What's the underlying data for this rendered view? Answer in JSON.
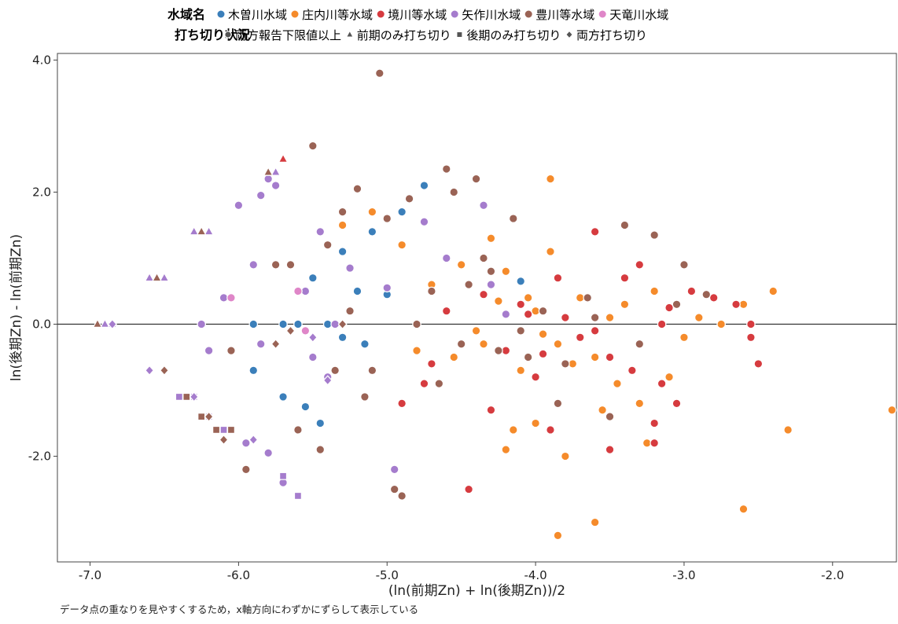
{
  "chart_data": {
    "type": "scatter",
    "xlabel": "(ln(前期Zn) + ln(後期Zn))/2",
    "ylabel": "ln(後期Zn) - ln(前期Zn)",
    "xlim": [
      -7.22,
      -1.57
    ],
    "ylim": [
      -3.6,
      4.1
    ],
    "x_ticks": [
      -7.0,
      -6.0,
      -5.0,
      -4.0,
      -3.0,
      -2.0
    ],
    "y_ticks": [
      -2.0,
      0.0,
      2.0,
      4.0
    ],
    "x_tick_labels": [
      "-7.0",
      "-6.0",
      "-5.0",
      "-4.0",
      "-3.0",
      "-2.0"
    ],
    "y_tick_labels": [
      "-2.0",
      "0.0",
      "2.0",
      "4.0"
    ],
    "reference_line_y": 0,
    "grid": false,
    "legend_position": "top",
    "footnote": "データ点の重なりを見やすくするため，x軸方向にわずかにずらして表示している",
    "legend": {
      "color_title": "水域名",
      "shape_title": "打ち切り状況",
      "color_entries": [
        {
          "name": "木曽川水域",
          "color": "#3b7fba"
        },
        {
          "name": "庄内川等水域",
          "color": "#f58b2b"
        },
        {
          "name": "境川等水域",
          "color": "#d63b3f"
        },
        {
          "name": "矢作川水域",
          "color": "#a57ccd"
        },
        {
          "name": "豊川等水域",
          "color": "#9a6355"
        },
        {
          "name": "天竜川水域",
          "color": "#df86c8"
        }
      ],
      "shape_entries": [
        {
          "name": "両方報告下限値以上",
          "shape": "circle"
        },
        {
          "name": "前期のみ打ち切り",
          "shape": "triangle"
        },
        {
          "name": "後期のみ打ち切り",
          "shape": "square"
        },
        {
          "name": "両方打ち切り",
          "shape": "diamond"
        }
      ]
    },
    "series": [
      {
        "name": "木曽川水域",
        "shape": "circle",
        "x": [
          -5.9,
          -5.7,
          -5.6,
          -5.4,
          -5.3,
          -5.2,
          -5.1,
          -5.0,
          -4.9,
          -4.75,
          -5.55,
          -5.45,
          -5.7,
          -5.9,
          -5.5,
          -5.3,
          -4.1,
          -5.15
        ],
        "y": [
          0.0,
          0.0,
          0.0,
          0.0,
          -0.2,
          0.5,
          1.4,
          0.45,
          1.7,
          2.1,
          -1.25,
          -1.5,
          -1.1,
          -0.7,
          0.7,
          1.1,
          0.65,
          -0.3
        ]
      },
      {
        "name": "庄内川等水域",
        "shape": "circle",
        "x": [
          -4.0,
          -3.85,
          -3.7,
          -3.6,
          -3.5,
          -3.45,
          -3.4,
          -3.3,
          -3.2,
          -3.1,
          -3.0,
          -2.9,
          -2.75,
          -2.6,
          -2.4,
          -1.6,
          -2.3,
          -2.6,
          -3.85,
          -3.6,
          -4.2,
          -4.0,
          -3.8,
          -3.9,
          -4.3,
          -4.5,
          -4.7,
          -4.9,
          -5.1,
          -5.3,
          -4.6,
          -4.4,
          -4.8,
          -4.2,
          -4.05,
          -3.75,
          -3.55,
          -3.25,
          -3.9,
          -4.1,
          -4.35,
          -4.55,
          -4.15,
          -4.25,
          -3.95
        ],
        "y": [
          0.2,
          -0.3,
          0.4,
          -0.5,
          0.1,
          -0.9,
          0.3,
          -1.2,
          0.5,
          -0.8,
          -0.2,
          0.1,
          0.0,
          0.3,
          0.5,
          -1.3,
          -1.6,
          -2.8,
          -3.2,
          -3.0,
          -1.9,
          -1.5,
          -2.0,
          2.2,
          1.3,
          0.9,
          0.6,
          1.2,
          1.7,
          1.5,
          0.2,
          -0.1,
          -0.4,
          0.8,
          0.4,
          -0.6,
          -1.3,
          -1.8,
          1.1,
          -0.7,
          -0.3,
          -0.5,
          -1.6,
          0.35,
          -0.15
        ]
      },
      {
        "name": "境川等水域",
        "shape": "circle",
        "x": [
          -2.55,
          -2.55,
          -2.5,
          -2.65,
          -2.8,
          -2.95,
          -3.05,
          -3.15,
          -3.2,
          -3.3,
          -3.4,
          -3.5,
          -3.6,
          -3.7,
          -3.8,
          -3.9,
          -4.0,
          -4.1,
          -4.2,
          -4.3,
          -4.45,
          -4.6,
          -4.75,
          -4.9,
          -3.6,
          -3.5,
          -3.1,
          -3.15,
          -4.5,
          -3.85,
          -4.7,
          -3.35,
          -3.2,
          -4.05,
          -3.95,
          -4.35
        ],
        "y": [
          -0.2,
          0.0,
          -0.6,
          0.3,
          0.4,
          0.5,
          -1.2,
          -0.9,
          -1.8,
          0.9,
          0.7,
          -0.5,
          1.4,
          -0.2,
          0.1,
          -1.6,
          -0.8,
          0.3,
          -0.4,
          -1.3,
          -2.5,
          0.2,
          -0.9,
          -1.2,
          -0.1,
          -1.9,
          0.25,
          0.0,
          -0.3,
          0.7,
          -0.6,
          -0.7,
          -1.5,
          0.15,
          -0.45,
          0.45
        ]
      },
      {
        "name": "矢作川水域",
        "shape": "circle",
        "x": [
          -6.1,
          -6.05,
          -6.0,
          -5.95,
          -5.85,
          -5.8,
          -5.75,
          -5.7,
          -5.45,
          -5.4,
          -5.35,
          -5.25,
          -5.0,
          -4.95,
          -4.75,
          -4.6,
          -4.35,
          -4.3,
          -4.2,
          -6.25,
          -6.2,
          -5.9,
          -5.85,
          -5.8,
          -5.55,
          -5.5
        ],
        "y": [
          0.4,
          -0.4,
          1.8,
          -1.8,
          1.95,
          -1.95,
          2.1,
          -2.4,
          1.4,
          -0.8,
          0.0,
          0.85,
          0.55,
          -2.2,
          1.55,
          1.0,
          1.8,
          0.6,
          0.15,
          0.0,
          -0.4,
          0.9,
          -0.3,
          2.2,
          0.5,
          -0.5
        ]
      },
      {
        "name": "豊川等水域",
        "shape": "circle",
        "x": [
          -5.05,
          -5.0,
          -4.95,
          -4.9,
          -4.85,
          -4.8,
          -4.7,
          -4.65,
          -4.55,
          -4.5,
          -4.4,
          -4.3,
          -4.25,
          -4.15,
          -4.1,
          -3.95,
          -3.8,
          -3.65,
          -3.5,
          -3.4,
          -3.2,
          -3.0,
          -2.85,
          -5.5,
          -5.4,
          -5.3,
          -5.2,
          -5.1,
          -5.95,
          -5.75,
          -5.45,
          -5.35,
          -5.25,
          -5.15,
          -4.45,
          -4.35,
          -4.05,
          -3.85,
          -3.6,
          -3.3,
          -3.05,
          -6.05,
          -5.65,
          -5.6,
          -4.6
        ],
        "y": [
          3.8,
          1.6,
          -2.5,
          -2.6,
          1.9,
          0.0,
          0.5,
          -0.9,
          2.0,
          -0.3,
          2.2,
          0.8,
          -0.4,
          1.6,
          -0.1,
          0.2,
          -0.6,
          0.4,
          -1.4,
          1.5,
          1.35,
          0.9,
          0.45,
          2.7,
          1.2,
          1.7,
          2.05,
          -0.7,
          -2.2,
          0.9,
          -1.9,
          -0.7,
          0.2,
          -1.1,
          0.6,
          1.0,
          -0.5,
          -1.2,
          0.1,
          -0.3,
          0.3,
          -0.4,
          0.9,
          -1.6,
          2.35
        ]
      },
      {
        "name": "天竜川水域",
        "shape": "circle",
        "x": [
          -6.05,
          -5.6,
          -5.55
        ],
        "y": [
          0.4,
          0.5,
          -0.1
        ]
      },
      {
        "name": "矢作川水域",
        "shape": "triangle",
        "x": [
          -6.6,
          -6.55,
          -6.5,
          -6.3,
          -6.2,
          -5.8,
          -5.75,
          -6.9,
          -6.85
        ],
        "y": [
          0.7,
          0.7,
          0.7,
          1.4,
          1.4,
          2.3,
          2.3,
          0.0,
          0.0
        ]
      },
      {
        "name": "豊川等水域",
        "shape": "triangle",
        "x": [
          -6.95,
          -6.55,
          -6.25,
          -5.8
        ],
        "y": [
          0.0,
          0.7,
          1.4,
          2.3
        ]
      },
      {
        "name": "境川等水域",
        "shape": "triangle",
        "x": [
          -5.7
        ],
        "y": [
          2.5
        ]
      },
      {
        "name": "豊川等水域",
        "shape": "square",
        "x": [
          -6.35,
          -6.25,
          -6.15,
          -6.05
        ],
        "y": [
          -1.1,
          -1.4,
          -1.6,
          -1.6
        ]
      },
      {
        "name": "矢作川水域",
        "shape": "square",
        "x": [
          -6.4,
          -6.3,
          -6.2,
          -6.1,
          -5.7,
          -5.6
        ],
        "y": [
          -1.1,
          -1.1,
          -1.4,
          -1.6,
          -2.3,
          -2.6
        ]
      },
      {
        "name": "矢作川水域",
        "shape": "diamond",
        "x": [
          -6.6,
          -6.3,
          -6.2,
          -5.9,
          -5.5,
          -5.4,
          -6.85
        ],
        "y": [
          -0.7,
          -1.1,
          -1.4,
          -1.75,
          -0.2,
          -0.85,
          0.0
        ]
      },
      {
        "name": "豊川等水域",
        "shape": "diamond",
        "x": [
          -6.5,
          -6.2,
          -6.1,
          -5.75,
          -5.3,
          -5.65
        ],
        "y": [
          -0.7,
          -1.4,
          -1.75,
          -0.3,
          0.0,
          -0.1
        ]
      }
    ]
  }
}
